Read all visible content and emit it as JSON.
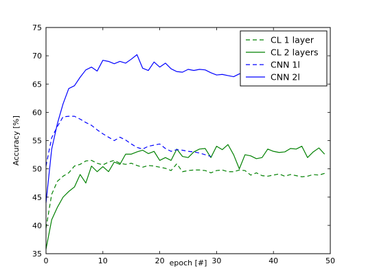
{
  "chart_data": {
    "type": "line",
    "title": "",
    "xlabel": "epoch [#]",
    "ylabel": "Accuracy [%]",
    "xlim": [
      0,
      50
    ],
    "ylim": [
      35,
      75
    ],
    "xticks": [
      0,
      10,
      20,
      30,
      40,
      50
    ],
    "yticks": [
      35,
      40,
      45,
      50,
      55,
      60,
      65,
      70,
      75
    ],
    "grid": false,
    "legend_position": "top-right",
    "series": [
      {
        "name": "CL 1 layer",
        "color": "#008000",
        "dash": "dashed",
        "x": [
          0,
          1,
          2,
          3,
          4,
          5,
          6,
          7,
          8,
          9,
          10,
          11,
          12,
          13,
          14,
          15,
          16,
          17,
          18,
          19,
          20,
          21,
          22,
          23,
          24,
          25,
          26,
          27,
          28,
          29,
          30,
          31,
          32,
          33,
          34,
          35,
          36,
          37,
          38,
          39,
          40,
          41,
          42,
          43,
          44,
          45,
          46,
          47,
          48,
          49
        ],
        "values": [
          39.5,
          45.5,
          47.8,
          48.7,
          49.3,
          50.5,
          50.8,
          51.4,
          51.5,
          51.0,
          50.7,
          51.2,
          51.5,
          51.0,
          50.8,
          51.0,
          50.6,
          50.3,
          50.6,
          50.5,
          50.3,
          50.1,
          49.7,
          50.9,
          49.5,
          49.7,
          49.8,
          49.8,
          49.7,
          49.3,
          49.7,
          49.8,
          49.5,
          49.5,
          49.8,
          49.7,
          48.9,
          49.3,
          48.8,
          48.7,
          48.9,
          49.1,
          48.7,
          49.0,
          48.8,
          48.6,
          48.7,
          49.0,
          48.9,
          49.2
        ]
      },
      {
        "name": "CL 2 layers",
        "color": "#008000",
        "dash": "solid",
        "x": [
          0,
          1,
          2,
          3,
          4,
          5,
          6,
          7,
          8,
          9,
          10,
          11,
          12,
          13,
          14,
          15,
          16,
          17,
          18,
          19,
          20,
          21,
          22,
          23,
          24,
          25,
          26,
          27,
          28,
          29,
          30,
          31,
          32,
          33,
          34,
          35,
          36,
          37,
          38,
          39,
          40,
          41,
          42,
          43,
          44,
          45,
          46,
          47,
          48,
          49
        ],
        "values": [
          35.8,
          41.0,
          43.2,
          45.0,
          46.0,
          46.8,
          49.0,
          47.5,
          50.5,
          49.5,
          50.4,
          49.5,
          51.2,
          50.8,
          52.6,
          52.6,
          53.0,
          53.3,
          52.7,
          53.1,
          51.5,
          52.0,
          51.5,
          53.5,
          52.2,
          52.0,
          53.0,
          53.5,
          53.6,
          52.0,
          54.0,
          53.4,
          54.3,
          52.5,
          50.0,
          52.5,
          52.3,
          51.8,
          52.0,
          53.5,
          53.1,
          52.9,
          53.0,
          53.6,
          53.5,
          54.0,
          52.0,
          53.0,
          53.7,
          52.6
        ]
      },
      {
        "name": "CNN 1l",
        "color": "#0000ff",
        "dash": "dashed",
        "x": [
          0,
          1,
          2,
          3,
          4,
          5,
          6,
          7,
          8,
          9,
          10,
          11,
          12,
          13,
          14,
          15,
          16,
          17,
          18,
          19,
          20,
          21,
          22,
          23,
          24,
          25,
          26,
          27,
          28,
          29
        ],
        "values": [
          50.5,
          55.5,
          57.5,
          59.2,
          59.3,
          59.3,
          58.8,
          58.2,
          57.7,
          56.9,
          56.2,
          55.6,
          55.0,
          55.6,
          55.1,
          54.4,
          53.8,
          53.5,
          54.0,
          54.2,
          54.4,
          53.6,
          53.1,
          53.4,
          53.3,
          53.1,
          53.0,
          52.8,
          52.5,
          52.2
        ]
      },
      {
        "name": "CNN 2l",
        "color": "#0000ff",
        "dash": "solid",
        "x": [
          0,
          1,
          2,
          3,
          4,
          5,
          6,
          7,
          8,
          9,
          10,
          11,
          12,
          13,
          14,
          15,
          16,
          17,
          18,
          19,
          20,
          21,
          22,
          23,
          24,
          25,
          26,
          27,
          28,
          29,
          30,
          31,
          32,
          33,
          34,
          35
        ],
        "values": [
          44.0,
          53.5,
          58.0,
          61.5,
          64.2,
          64.7,
          66.2,
          67.5,
          68.0,
          67.3,
          69.2,
          69.0,
          68.6,
          69.0,
          68.7,
          69.4,
          70.2,
          67.8,
          67.4,
          68.9,
          68.0,
          68.7,
          67.7,
          67.2,
          67.1,
          67.6,
          67.4,
          67.6,
          67.5,
          67.0,
          66.6,
          66.7,
          66.5,
          66.3,
          66.8,
          66.9
        ]
      }
    ]
  }
}
